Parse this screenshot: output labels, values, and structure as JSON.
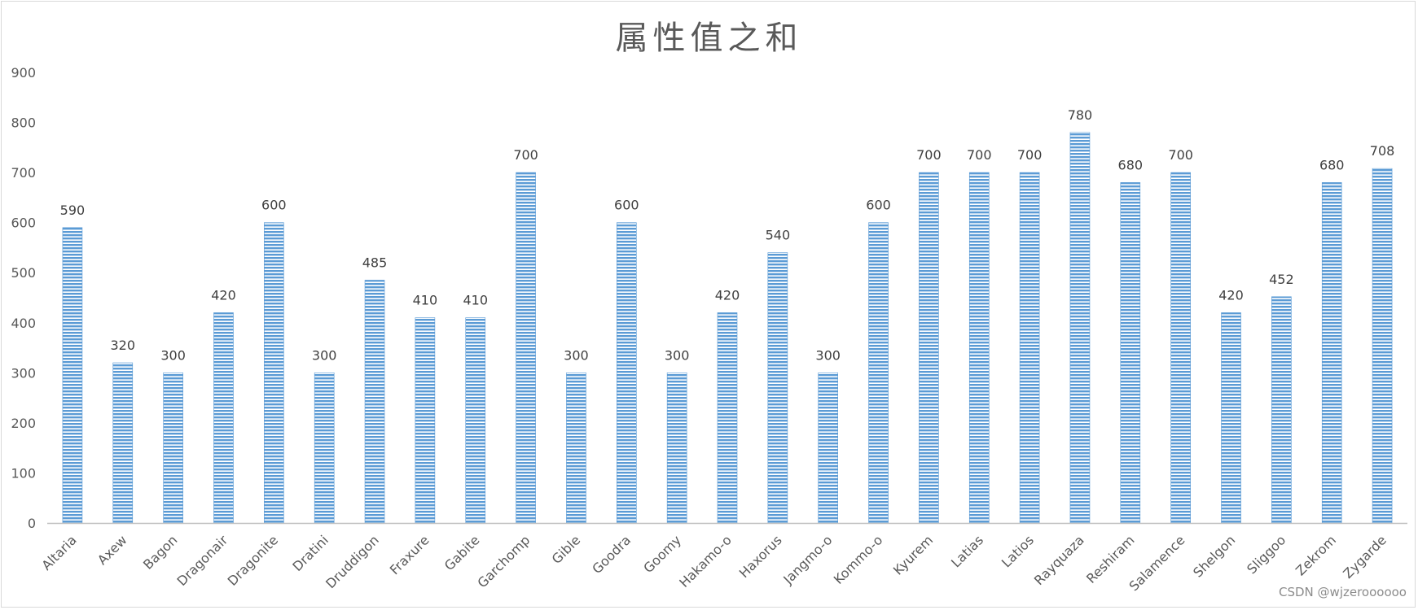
{
  "chart_data": {
    "type": "bar",
    "title": "属性值之和",
    "xlabel": "",
    "ylabel": "",
    "ylim": [
      0,
      900
    ],
    "yticks": [
      0,
      100,
      200,
      300,
      400,
      500,
      600,
      700,
      800,
      900
    ],
    "grid": false,
    "legend": "none",
    "bar_color": "#5b9bd5",
    "bar_pattern": "horizontal-stripes",
    "categories": [
      "Altaria",
      "Axew",
      "Bagon",
      "Dragonair",
      "Dragonite",
      "Dratini",
      "Druddigon",
      "Fraxure",
      "Gabite",
      "Garchomp",
      "Gible",
      "Goodra",
      "Goomy",
      "Hakamo-o",
      "Haxorus",
      "Jangmo-o",
      "Kommo-o",
      "Kyurem",
      "Latias",
      "Latios",
      "Rayquaza",
      "Reshiram",
      "Salamence",
      "Shelgon",
      "Sliggoo",
      "Zekrom",
      "Zygarde"
    ],
    "values": [
      590,
      320,
      300,
      420,
      600,
      300,
      485,
      410,
      410,
      700,
      300,
      600,
      300,
      420,
      540,
      300,
      600,
      700,
      700,
      700,
      780,
      680,
      700,
      420,
      452,
      680,
      708
    ]
  },
  "watermark": "CSDN @wjzeroooooo"
}
